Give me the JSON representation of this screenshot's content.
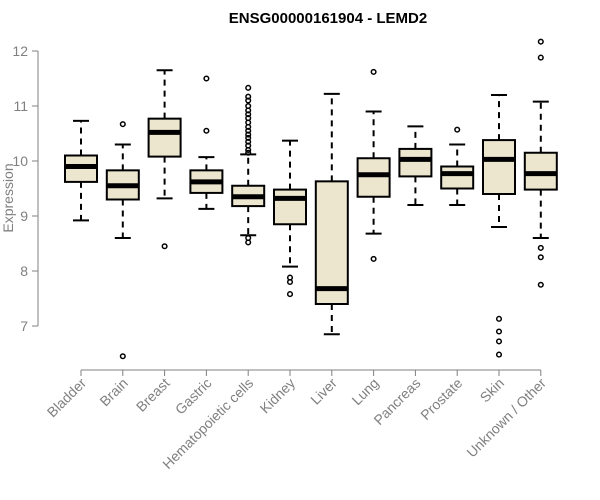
{
  "chart_data": {
    "type": "boxplot",
    "title": "ENSG00000161904 - LEMD2",
    "xlabel": "",
    "ylabel": "Expression",
    "ylim": [
      6.3,
      12.3
    ],
    "yticks": [
      7,
      8,
      9,
      10,
      11,
      12
    ],
    "grid": false,
    "box_fill": "#ede6cf",
    "categories": [
      "Bladder",
      "Brain",
      "Breast",
      "Gastric",
      "Hematopoietic cells",
      "Kidney",
      "Liver",
      "Lung",
      "Pancreas",
      "Prostate",
      "Skin",
      "Unknown / Other"
    ],
    "boxes": [
      {
        "whisker_low": 8.92,
        "q1": 9.62,
        "median": 9.9,
        "q3": 10.1,
        "whisker_high": 10.73,
        "outliers": []
      },
      {
        "whisker_low": 8.6,
        "q1": 9.3,
        "median": 9.55,
        "q3": 9.83,
        "whisker_high": 10.3,
        "outliers": [
          10.67,
          6.45
        ]
      },
      {
        "whisker_low": 9.32,
        "q1": 10.08,
        "median": 10.52,
        "q3": 10.77,
        "whisker_high": 11.65,
        "outliers": [
          8.45
        ]
      },
      {
        "whisker_low": 9.13,
        "q1": 9.42,
        "median": 9.62,
        "q3": 9.83,
        "whisker_high": 10.07,
        "outliers": [
          11.5,
          10.55
        ]
      },
      {
        "whisker_low": 8.65,
        "q1": 9.18,
        "median": 9.35,
        "q3": 9.55,
        "whisker_high": 10.12,
        "outliers": [
          11.33,
          11.17,
          11.1,
          11.0,
          10.92,
          10.85,
          10.78,
          10.7,
          10.62,
          10.55,
          10.48,
          10.42,
          10.35,
          10.28,
          10.2,
          10.15,
          8.6,
          8.52
        ]
      },
      {
        "whisker_low": 8.08,
        "q1": 8.85,
        "median": 9.32,
        "q3": 9.48,
        "whisker_high": 10.37,
        "outliers": [
          7.88,
          7.8,
          7.58
        ]
      },
      {
        "whisker_low": 6.85,
        "q1": 7.4,
        "median": 7.68,
        "q3": 9.63,
        "whisker_high": 11.22,
        "outliers": []
      },
      {
        "whisker_low": 8.68,
        "q1": 9.35,
        "median": 9.75,
        "q3": 10.05,
        "whisker_high": 10.9,
        "outliers": [
          11.62,
          8.22
        ]
      },
      {
        "whisker_low": 9.2,
        "q1": 9.72,
        "median": 10.03,
        "q3": 10.22,
        "whisker_high": 10.63,
        "outliers": []
      },
      {
        "whisker_low": 9.2,
        "q1": 9.5,
        "median": 9.77,
        "q3": 9.9,
        "whisker_high": 10.3,
        "outliers": [
          10.57
        ]
      },
      {
        "whisker_low": 8.8,
        "q1": 9.4,
        "median": 10.03,
        "q3": 10.38,
        "whisker_high": 11.2,
        "outliers": [
          7.13,
          6.9,
          6.72,
          6.48
        ]
      },
      {
        "whisker_low": 8.6,
        "q1": 9.48,
        "median": 9.77,
        "q3": 10.15,
        "whisker_high": 11.08,
        "outliers": [
          12.17,
          11.88,
          8.42,
          8.25,
          7.75
        ]
      }
    ]
  }
}
